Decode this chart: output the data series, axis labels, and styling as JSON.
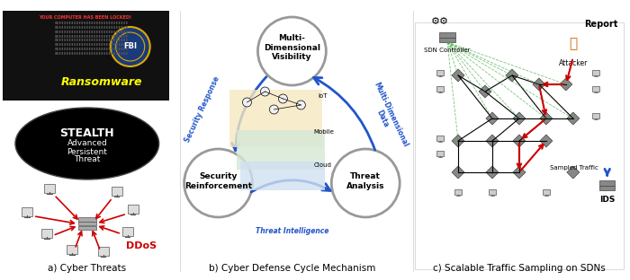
{
  "fig_width": 7.0,
  "fig_height": 3.12,
  "bg_color": "#ffffff",
  "panel_a": {
    "title": "a) Cyber Threats",
    "ransomware_bg": "#111111",
    "ransomware_text": "Ransomware",
    "ransomware_color": "#ffff00",
    "stealth_text": [
      "STEALTH",
      "Advanced",
      "Persistent",
      "Threat"
    ],
    "ddos_color": "#cc0000",
    "ddos_text": "DDoS"
  },
  "panel_b": {
    "title": "b) Cyber Defense Cycle Mechanism",
    "node1": "Multi-\nDimensional\nVisibility",
    "node2": "Security\nReinforcement",
    "node3": "Threat\nAnalysis",
    "arrow1": "Security Response",
    "arrow2": "Multi-Dimensional\nData",
    "arrow3": "Threat Intelligence",
    "circle_color": "#aaaaaa",
    "arrow_color": "#2255cc",
    "iot_label": "IoT",
    "mobile_label": "Mobile",
    "cloud_label": "Cloud"
  },
  "panel_c": {
    "title": "c) Scalable Traffic Sampling on SDNs",
    "report_label": "Report",
    "sdn_label": "SDN Controller",
    "attacker_label": "Attacker",
    "sampled_label": "Sampled Traffic",
    "ids_label": "IDS",
    "green_color": "#44aa44",
    "red_color": "#cc0000",
    "blue_color": "#2255cc"
  }
}
